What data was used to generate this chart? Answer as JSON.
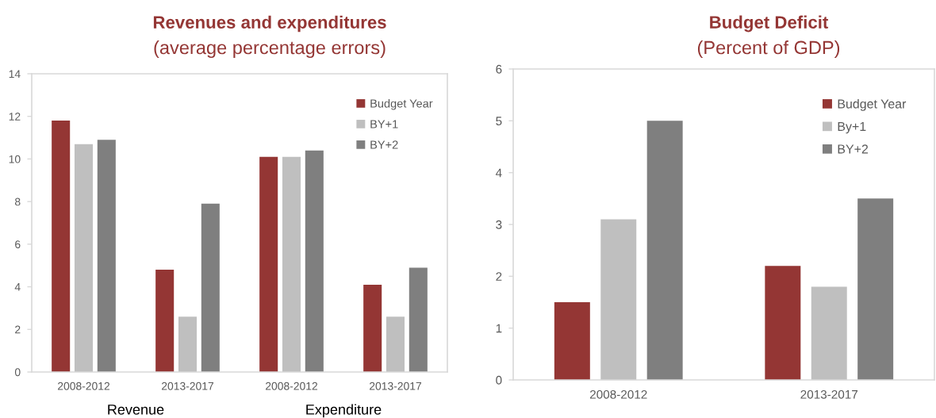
{
  "chart_data": [
    {
      "type": "bar",
      "title": "Revenues and expenditures",
      "subtitle": "(average percentage errors)",
      "categories": [
        "2008-2012",
        "2013-2017",
        "2008-2012",
        "2013-2017"
      ],
      "series": [
        {
          "name": "Budget Year",
          "color": "#943634",
          "values": [
            11.8,
            4.8,
            10.1,
            4.1
          ]
        },
        {
          "name": "BY+1",
          "color": "#bfbfbf",
          "values": [
            10.7,
            2.6,
            10.1,
            2.6
          ]
        },
        {
          "name": "BY+2",
          "color": "#7f7f7f",
          "values": [
            10.9,
            7.9,
            10.4,
            4.9
          ]
        }
      ],
      "ylim": [
        0,
        14
      ],
      "yticks": [
        0,
        2,
        4,
        6,
        8,
        10,
        12,
        14
      ],
      "legend": "top right",
      "annotations": [
        "Revenue",
        "Expenditure"
      ]
    },
    {
      "type": "bar",
      "title": "Budget Deficit",
      "subtitle": "(Percent of GDP)",
      "categories": [
        "2008-2012",
        "2013-2017"
      ],
      "series": [
        {
          "name": "Budget Year",
          "color": "#943634",
          "values": [
            1.5,
            2.2
          ]
        },
        {
          "name": "By+1",
          "color": "#bfbfbf",
          "values": [
            3.1,
            1.8
          ]
        },
        {
          "name": "BY+2",
          "color": "#7f7f7f",
          "values": [
            5.0,
            3.5
          ]
        }
      ],
      "ylim": [
        0,
        6
      ],
      "yticks": [
        0,
        1,
        2,
        3,
        4,
        5,
        6
      ],
      "legend": "top right"
    }
  ]
}
